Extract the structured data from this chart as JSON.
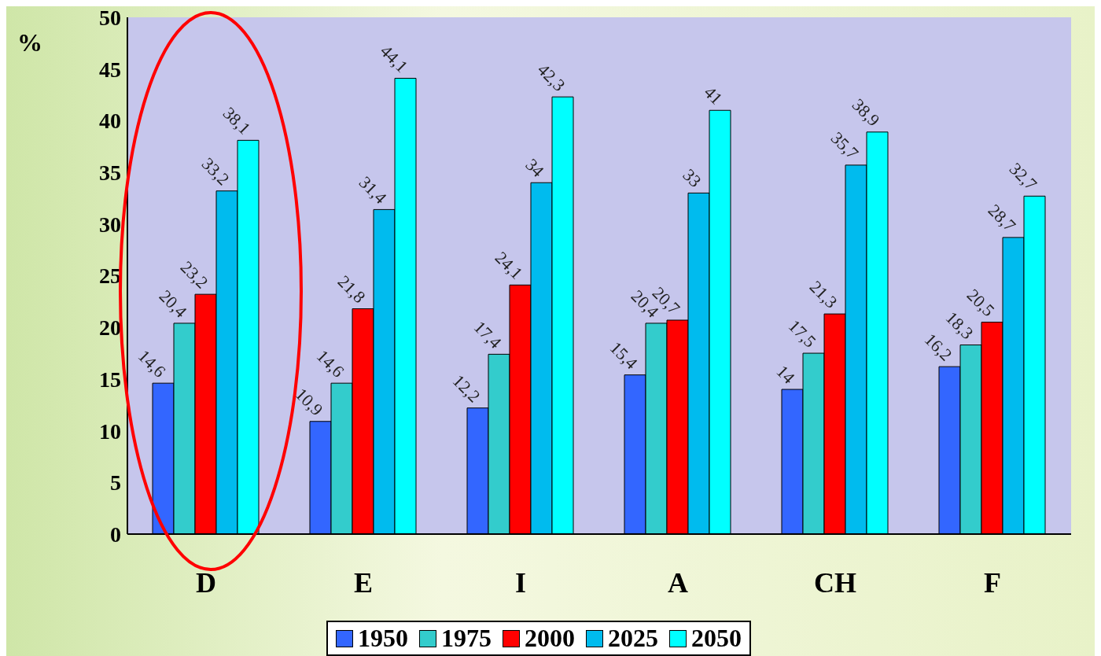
{
  "chart_data": {
    "type": "bar",
    "ylabel": "%",
    "categories": [
      "D",
      "E",
      "I",
      "A",
      "CH",
      "F"
    ],
    "series": [
      {
        "name": "1950",
        "color": "#3366ff",
        "values": [
          14.6,
          10.9,
          12.2,
          15.4,
          14,
          16.2
        ],
        "value_labels": [
          "14,6",
          "10,9",
          "12,2",
          "15,4",
          "14",
          "16,2"
        ]
      },
      {
        "name": "1975",
        "color": "#33cccc",
        "values": [
          20.4,
          14.6,
          17.4,
          20.4,
          17.5,
          18.3
        ],
        "value_labels": [
          "20,4",
          "14,6",
          "17,4",
          "20,4",
          "17,5",
          "18,3"
        ]
      },
      {
        "name": "2000",
        "color": "#ff0000",
        "values": [
          23.2,
          21.8,
          24.1,
          20.7,
          21.3,
          20.5
        ],
        "value_labels": [
          "23,2",
          "21,8",
          "24,1",
          "20,7",
          "21,3",
          "20,5"
        ]
      },
      {
        "name": "2025",
        "color": "#00bbee",
        "values": [
          33.2,
          31.4,
          34,
          33,
          35.7,
          28.7
        ],
        "value_labels": [
          "33,2",
          "31,4",
          "34",
          "33",
          "35,7",
          "28,7"
        ]
      },
      {
        "name": "2050",
        "color": "#00ffff",
        "values": [
          38.1,
          44.1,
          42.3,
          41,
          38.9,
          32.7
        ],
        "value_labels": [
          "38,1",
          "44,1",
          "42,3",
          "41",
          "38,9",
          "32,7"
        ]
      }
    ],
    "ylim": [
      0,
      50
    ],
    "yticks": [
      0,
      5,
      10,
      15,
      20,
      25,
      30,
      35,
      40,
      45,
      50
    ],
    "grid": false,
    "legend": "bottom"
  }
}
